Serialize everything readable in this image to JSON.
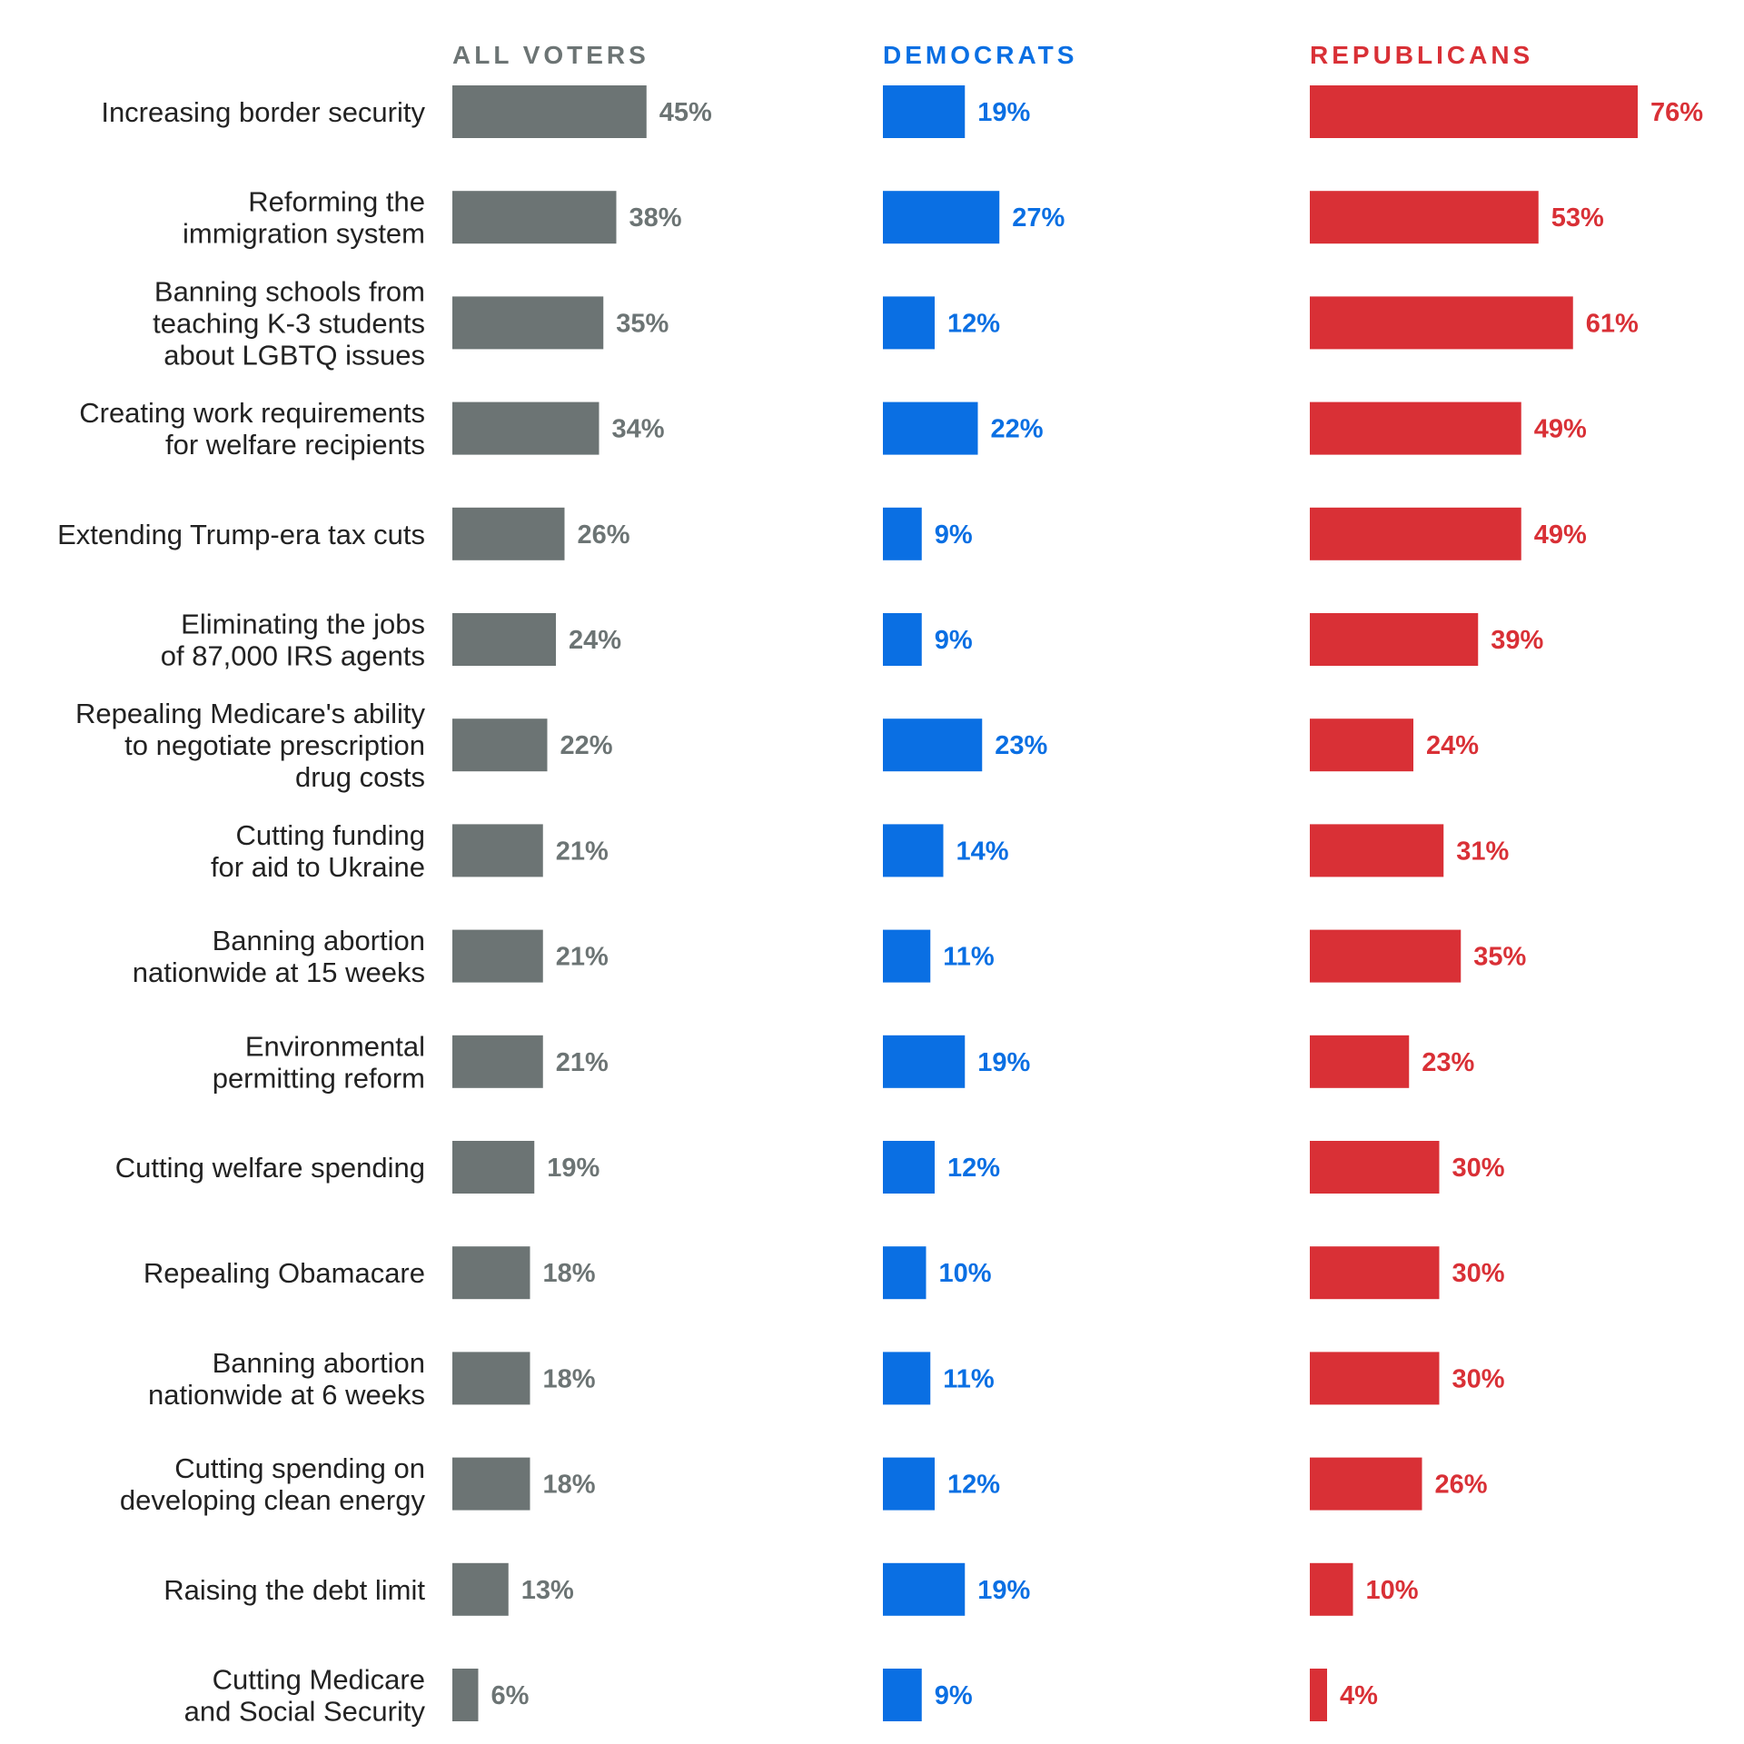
{
  "chart_data": {
    "type": "bar",
    "categories": [
      "Increasing border security",
      "Reforming the immigration system",
      "Banning schools from teaching K-3 students about LGBTQ issues",
      "Creating work requirements for welfare recipients",
      "Extending Trump-era tax cuts",
      "Eliminating the jobs of 87,000 IRS agents",
      "Repealing Medicare's ability to negotiate prescription drug costs",
      "Cutting funding for aid to Ukraine",
      "Banning abortion nationwide at 15 weeks",
      "Environmental permitting reform",
      "Cutting welfare spending",
      "Repealing Obamacare",
      "Banning abortion nationwide at 6 weeks",
      "Cutting spending on developing clean energy",
      "Raising the debt limit",
      "Cutting Medicare and Social Security"
    ],
    "category_lines": [
      [
        "Increasing border security"
      ],
      [
        "Reforming the",
        "immigration system"
      ],
      [
        "Banning schools from",
        "teaching K-3 students",
        "about LGBTQ issues"
      ],
      [
        "Creating work requirements",
        "for welfare recipients"
      ],
      [
        "Extending Trump-era tax cuts"
      ],
      [
        "Eliminating the jobs",
        "of 87,000 IRS agents"
      ],
      [
        "Repealing Medicare's ability",
        "to negotiate prescription",
        "drug costs"
      ],
      [
        "Cutting funding",
        "for aid to Ukraine"
      ],
      [
        "Banning abortion",
        "nationwide at 15 weeks"
      ],
      [
        "Environmental",
        "permitting reform"
      ],
      [
        "Cutting welfare spending"
      ],
      [
        "Repealing Obamacare"
      ],
      [
        "Banning abortion",
        "nationwide at 6 weeks"
      ],
      [
        "Cutting spending on",
        "developing clean energy"
      ],
      [
        "Raising the debt limit"
      ],
      [
        "Cutting Medicare",
        "and Social Security"
      ]
    ],
    "series": [
      {
        "name": "ALL VOTERS",
        "color": "#6c7474",
        "values": [
          45,
          38,
          35,
          34,
          26,
          24,
          22,
          21,
          21,
          21,
          19,
          18,
          18,
          18,
          13,
          6
        ]
      },
      {
        "name": "DEMOCRATS",
        "color": "#0a6fe3",
        "values": [
          19,
          27,
          12,
          22,
          9,
          9,
          23,
          14,
          11,
          19,
          12,
          10,
          11,
          12,
          19,
          9
        ]
      },
      {
        "name": "REPUBLICANS",
        "color": "#d93036",
        "values": [
          76,
          53,
          61,
          49,
          49,
          39,
          24,
          31,
          35,
          23,
          30,
          30,
          30,
          26,
          10,
          4
        ]
      }
    ],
    "value_suffix": "%",
    "orientation": "horizontal",
    "layout": "small-multiples",
    "grid": false
  }
}
